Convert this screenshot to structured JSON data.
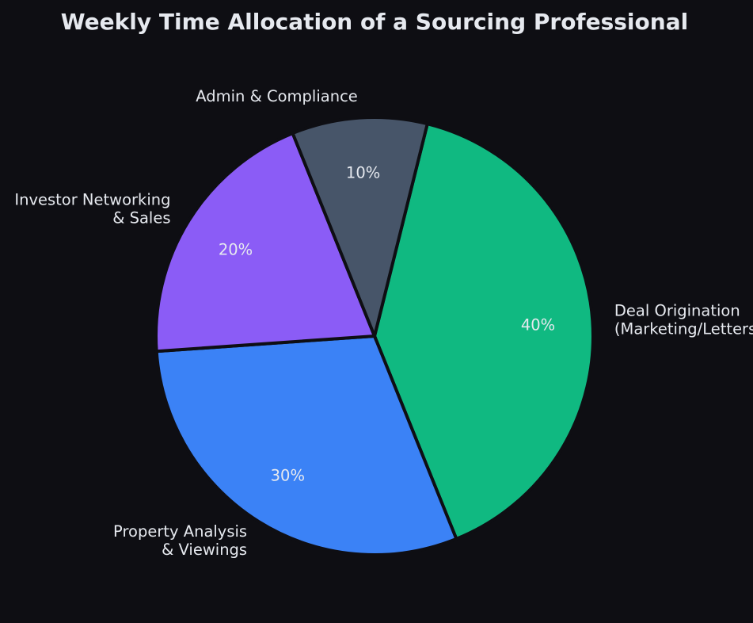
{
  "chart_data": {
    "type": "pie",
    "title": "Weekly Time Allocation of a Sourcing Professional",
    "start_angle_deg": 76,
    "direction": "clockwise",
    "labels": [
      "Deal Origination\n(Marketing/Letters)",
      "Property Analysis\n& Viewings",
      "Investor Networking\n& Sales",
      "Admin & Compliance"
    ],
    "values": [
      40,
      30,
      20,
      10
    ],
    "percent_labels": [
      "40%",
      "30%",
      "20%",
      "10%"
    ],
    "colors": [
      "#10b981",
      "#3b82f6",
      "#8b5cf6",
      "#475569"
    ],
    "background_color": "#0e0e13",
    "text_color": "#e6e9ef",
    "legend": "none"
  }
}
